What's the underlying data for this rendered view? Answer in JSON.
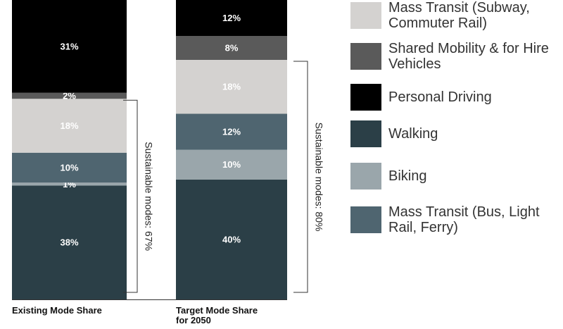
{
  "chart_data": {
    "type": "stacked_bar",
    "categories": [
      "Existing Mode Share",
      "Target Mode Share for 2050"
    ],
    "series": [
      {
        "name": "Walking",
        "color": "#2b3f47",
        "values": [
          38,
          40
        ],
        "value_labels": [
          "38%",
          "40%"
        ]
      },
      {
        "name": "Biking",
        "color": "#9aa6ab",
        "values": [
          1,
          10
        ],
        "value_labels": [
          "1%",
          "10%"
        ]
      },
      {
        "name": "Mass Transit (Bus, Light Rail, Ferry)",
        "color": "#4f6570",
        "values": [
          10,
          12
        ],
        "value_labels": [
          "10%",
          "12%"
        ]
      },
      {
        "name": "Mass Transit (Subway, Commuter Rail)",
        "color": "#d4d2d0",
        "values": [
          18,
          18
        ],
        "value_labels": [
          "18%",
          "18%"
        ]
      },
      {
        "name": "Shared Mobility & for Hire Vehicles",
        "color": "#5a5a5a",
        "values": [
          2,
          8
        ],
        "value_labels": [
          "2%",
          "8%"
        ]
      },
      {
        "name": "Personal Driving",
        "color": "#000000",
        "values": [
          31,
          12
        ],
        "value_labels": [
          "31%",
          "12%"
        ]
      }
    ],
    "annotations": [
      "Sustainable modes: 67%",
      "Sustainable modes: 80%"
    ]
  }
}
